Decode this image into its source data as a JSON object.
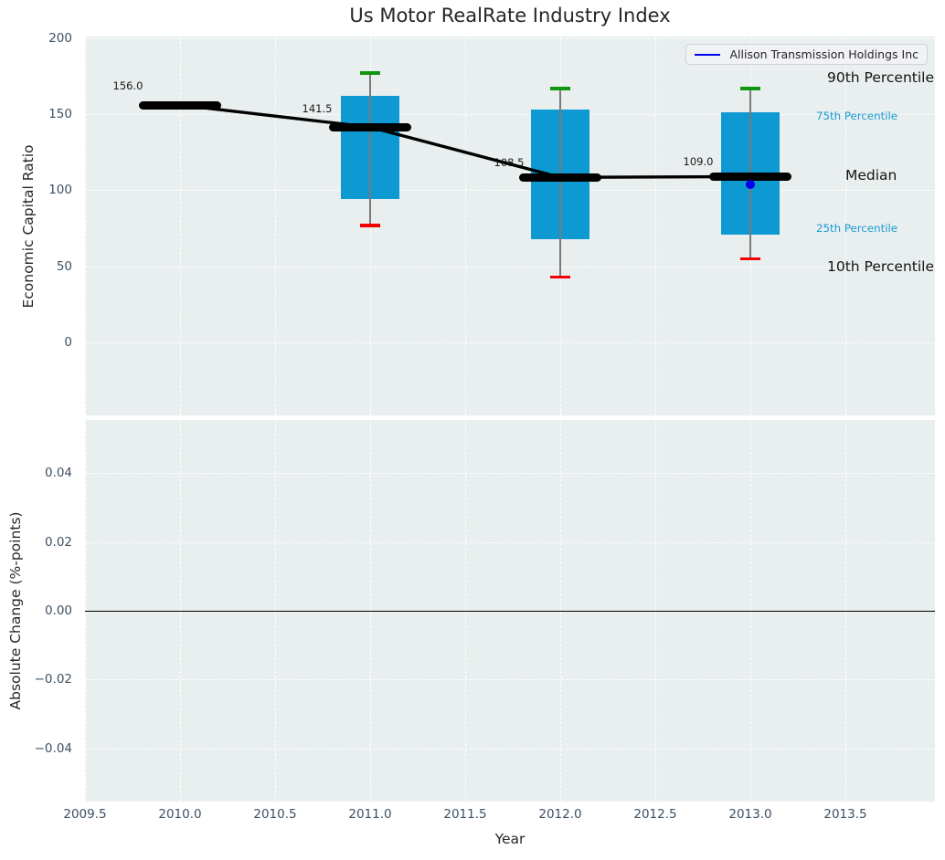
{
  "title": "Us Motor RealRate Industry Index",
  "colors": {
    "axes_background": "#e9eeef",
    "grid": "#ffffff",
    "box_fill": "#0d99d2",
    "p90_cap": "#0f960f",
    "p10_cap": "#f50000",
    "whisker": "#7a7a7a",
    "median_line": "#000000",
    "company": "#0000eb",
    "percentile_label_small": "#189bd3",
    "tick_text": "#3e5063",
    "title_text": "#262626"
  },
  "chart_data": [
    {
      "type": "boxplot",
      "title": "Us Motor RealRate Industry Index",
      "xlabel": "Year",
      "ylabel": "Economic Capital Ratio",
      "xlim": [
        2009.5,
        2013.97
      ],
      "ylim": [
        -49,
        201
      ],
      "xticks": [
        2009.5,
        2010.0,
        2010.5,
        2011.0,
        2011.5,
        2012.0,
        2012.5,
        2013.0,
        2013.5
      ],
      "yticks": [
        200,
        150,
        100,
        50,
        0
      ],
      "grid": true,
      "legend": {
        "label": "Allison Transmission Holdings Inc",
        "location": "upper right"
      },
      "boxes": [
        {
          "year": 2010,
          "median": 156.0,
          "median_label": "156.0",
          "label_offset": [
            -57,
            -21
          ]
        },
        {
          "year": 2011,
          "p90": 177,
          "p75": 162,
          "median": 141.5,
          "p25": 94,
          "p10": 77,
          "median_label": "141.5",
          "label_offset": [
            -58,
            -20
          ]
        },
        {
          "year": 2012,
          "p90": 167,
          "p75": 153,
          "median": 108.5,
          "p25": 68,
          "p10": 43,
          "median_label": "108.5",
          "label_offset": [
            -56,
            -16
          ]
        },
        {
          "year": 2013,
          "p90": 167,
          "p75": 151,
          "median": 109.0,
          "p25": 71,
          "p10": 55,
          "median_label": "109.0",
          "label_offset": [
            -57,
            -16
          ]
        }
      ],
      "median_trend": [
        [
          2010,
          156.0
        ],
        [
          2011,
          141.5
        ],
        [
          2012,
          108.5
        ],
        [
          2013,
          109.0
        ]
      ],
      "company_series": {
        "name": "Allison Transmission Holdings Inc",
        "points": [
          [
            2013,
            104
          ]
        ]
      },
      "percentile_annotations": [
        {
          "text": "90th Percentile",
          "year": 2013,
          "value": 167,
          "offset": [
            84,
            -12
          ],
          "style": "large"
        },
        {
          "text": "75th Percentile",
          "year": 2013,
          "value": 151,
          "offset": [
            72,
            4
          ],
          "style": "small"
        },
        {
          "text": "Median",
          "year": 2013,
          "value": 109,
          "offset": [
            104,
            -1
          ],
          "style": "large"
        },
        {
          "text": "25th Percentile",
          "year": 2013,
          "value": 71,
          "offset": [
            72,
            -7
          ],
          "style": "small"
        },
        {
          "text": "10th Percentile",
          "year": 2013,
          "value": 55,
          "offset": [
            84,
            9
          ],
          "style": "large"
        }
      ]
    },
    {
      "type": "line",
      "xlabel": "Year",
      "ylabel": "Absolute Change (%-points)",
      "xlim": [
        2009.5,
        2013.97
      ],
      "ylim": [
        -0.0555,
        0.0555
      ],
      "xticks": [
        2009.5,
        2010.0,
        2010.5,
        2011.0,
        2011.5,
        2012.0,
        2012.5,
        2013.0,
        2013.5
      ],
      "yticks": [
        0.04,
        0.02,
        0.0,
        -0.02,
        -0.04
      ],
      "grid": true,
      "zero_line": true,
      "series": []
    }
  ]
}
